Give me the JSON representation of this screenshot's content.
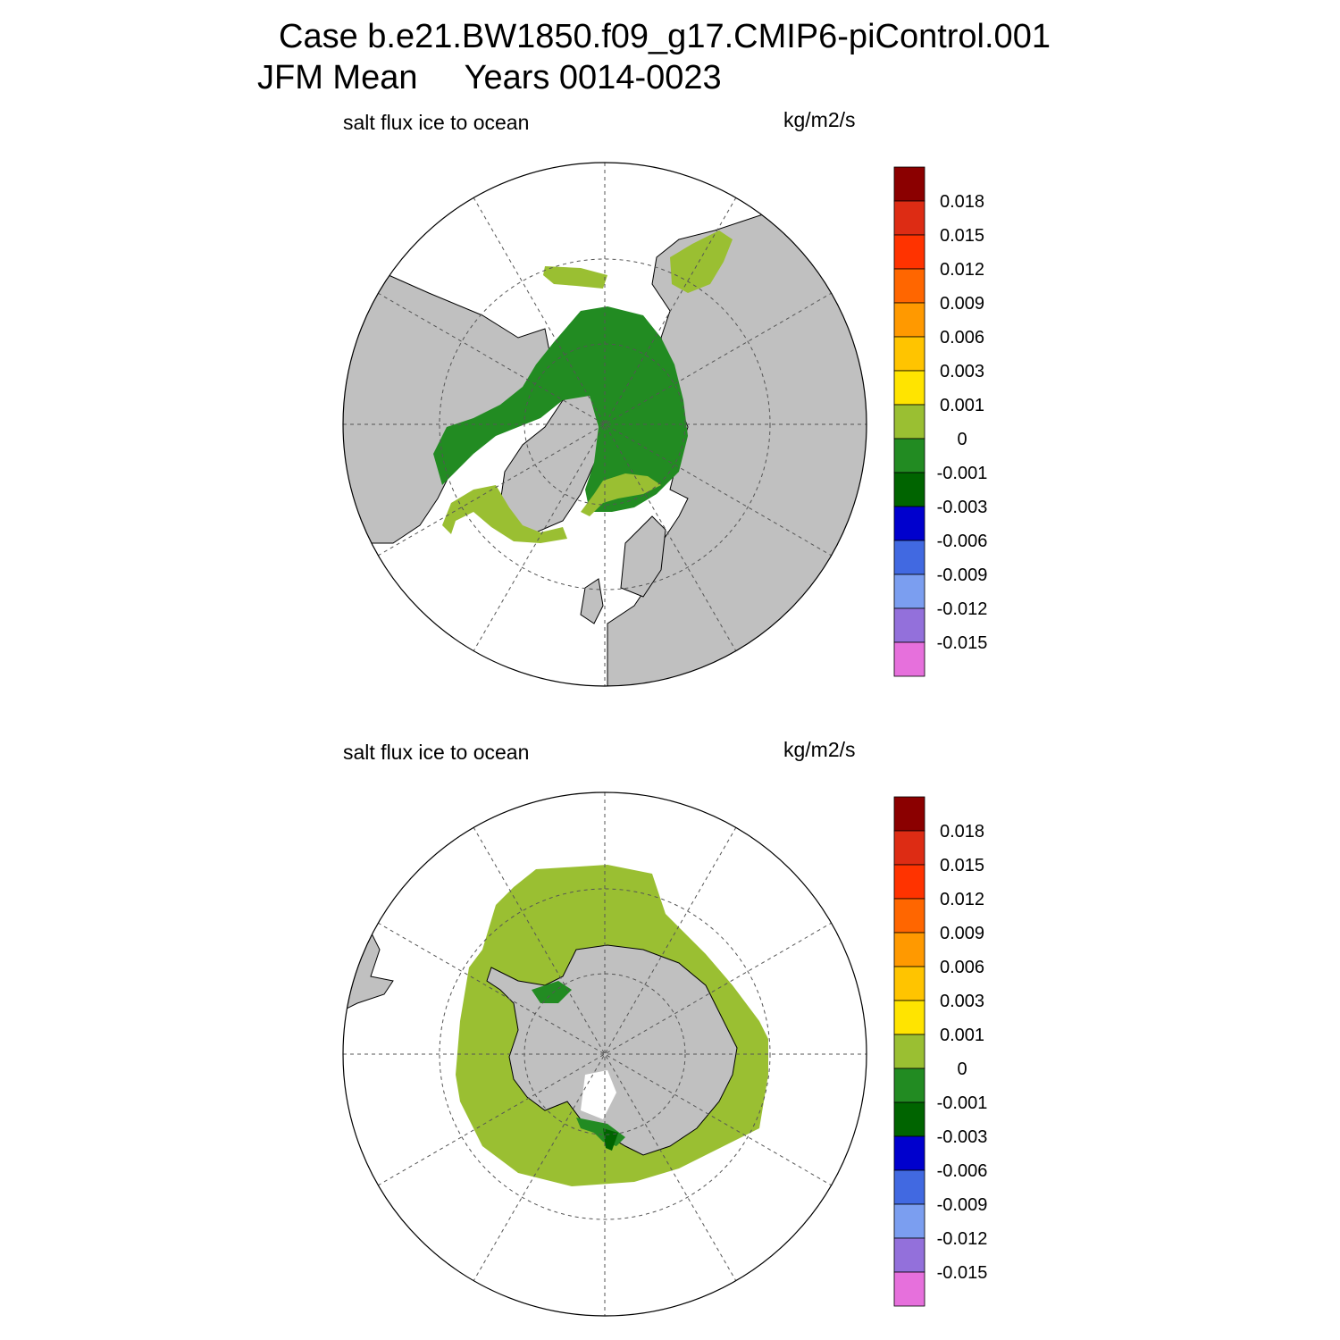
{
  "figure": {
    "title_line1": "Case b.e21.BW1850.f09_g17.CMIP6-piControl.001",
    "title_line2": "JFM Mean     Years 0014-0023"
  },
  "panels": [
    {
      "id": "north",
      "variable_label": "salt flux ice to ocean",
      "units_label": "kg/m2/s",
      "hemisphere": "Northern polar stereographic",
      "dominant_colors": [
        "#228b22",
        "#9acd32"
      ]
    },
    {
      "id": "south",
      "variable_label": "salt flux ice to ocean",
      "units_label": "kg/m2/s",
      "hemisphere": "Southern polar stereographic",
      "dominant_colors": [
        "#9acd32",
        "#228b22",
        "#006400"
      ]
    }
  ],
  "colorbar": {
    "labels": [
      "0.018",
      "0.015",
      "0.012",
      "0.009",
      "0.006",
      "0.003",
      "0.001",
      "0",
      "-0.001",
      "-0.003",
      "-0.006",
      "-0.009",
      "-0.012",
      "-0.015"
    ],
    "colors": [
      "#8b0000",
      "#dd2c14",
      "#ff3300",
      "#ff6600",
      "#ff9900",
      "#ffc400",
      "#ffe400",
      "#9abf32",
      "#228b22",
      "#006400",
      "#0000cd",
      "#4169e1",
      "#7b9ef0",
      "#9370db",
      "#e670dc"
    ]
  },
  "style": {
    "land_color": "#c0c0c0",
    "ocean_color": "#ffffff",
    "grid_color": "#555555"
  }
}
